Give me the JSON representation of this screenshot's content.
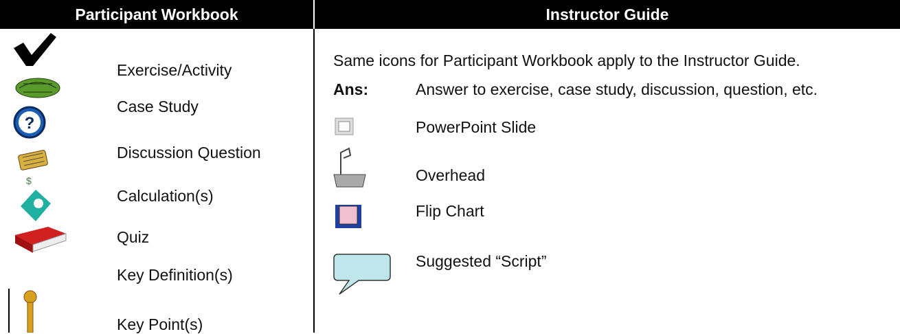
{
  "header": {
    "left": "Participant Workbook",
    "right": "Instructor Guide"
  },
  "participant_items": [
    "Exercise/Activity",
    "Case Study",
    "Discussion Question",
    "Calculation(s)",
    "Quiz",
    "Key Definition(s)",
    "Key Point(s)"
  ],
  "instructor_note": "Same icons for Participant Workbook apply to the Instructor Guide.",
  "instructor_items": [
    {
      "key": "Ans:",
      "label": "Answer to exercise, case study, discussion, question, etc."
    },
    {
      "label": "PowerPoint Slide"
    },
    {
      "label": "Overhead"
    },
    {
      "label": "Flip Chart"
    },
    {
      "label": "Suggested “Script”"
    }
  ]
}
